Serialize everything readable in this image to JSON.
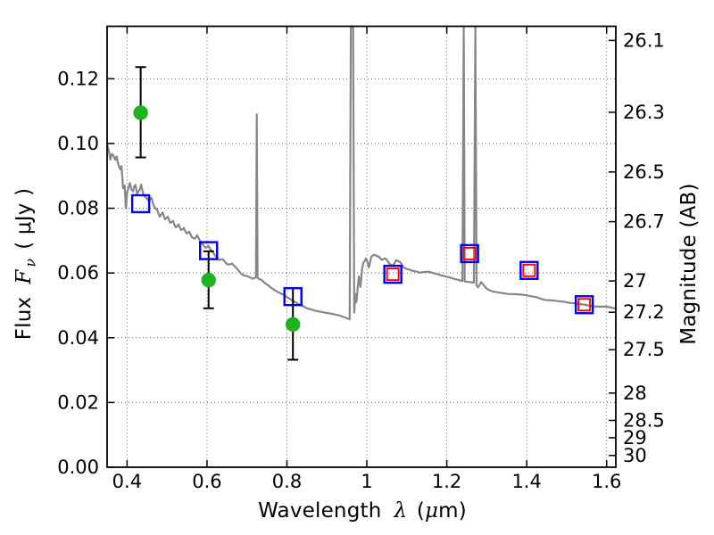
{
  "figure": {
    "xlabel": {
      "prefix": "Wavelength",
      "symbol": "λ",
      "unit_open": "(",
      "unit_mu": "μ",
      "unit_close": "m)"
    },
    "ylabel_left": {
      "prefix": "Flux",
      "symbol": "F",
      "symbol_sub": "ν",
      "unit": "( μJy )"
    },
    "ylabel_right": "Magnitude (AB)"
  },
  "colors": {
    "spectrum": "#868686",
    "green_marker": "#1eb21e",
    "blue_marker": "#0000ee",
    "red_marker": "#ff0000",
    "errorbar": "#000000",
    "frame": "#000000",
    "grid": "#444444",
    "background": "#ffffff"
  },
  "chart_data": {
    "type": "line+scatter",
    "title": "",
    "xlabel": "Wavelength λ (μm)",
    "ylabel_left": "Flux Fν ( μJy )",
    "ylabel_right": "Magnitude (AB)",
    "grid": "dotted lines at major ticks of bottom and left axes",
    "legend": "none",
    "xlim": [
      0.35,
      1.623
    ],
    "ylim_flux": [
      0,
      0.1362
    ],
    "ab_zeropoint_ujy": 23.9,
    "x_ticks": [
      0.4,
      0.6,
      0.8,
      1.0,
      1.2,
      1.4,
      1.6
    ],
    "x_tick_labels": [
      "0.4",
      "0.6",
      "0.8",
      "1",
      "1.2",
      "1.4",
      "1.6"
    ],
    "y_ticks_flux": [
      0.0,
      0.02,
      0.04,
      0.06,
      0.08,
      0.1,
      0.12
    ],
    "y_tick_labels_flux": [
      "0.00",
      "0.02",
      "0.04",
      "0.06",
      "0.08",
      "0.10",
      "0.12"
    ],
    "y_ticks_mag": [
      26.1,
      26.3,
      26.5,
      26.7,
      27,
      27.2,
      27.5,
      28,
      28.5,
      29,
      30
    ],
    "y_tick_labels_mag": [
      "26.1",
      "26.3",
      "26.5",
      "26.7",
      "27",
      "27.2",
      "27.5",
      "28",
      "28.5",
      "29",
      "30"
    ],
    "series": [
      {
        "name": "model-spectrum",
        "type": "line",
        "color": "#868686",
        "points": [
          [
            0.35,
            0.0996
          ],
          [
            0.354,
            0.098
          ],
          [
            0.358,
            0.095
          ],
          [
            0.362,
            0.0968
          ],
          [
            0.366,
            0.0962
          ],
          [
            0.37,
            0.095
          ],
          [
            0.374,
            0.096
          ],
          [
            0.378,
            0.0935
          ],
          [
            0.383,
            0.092
          ],
          [
            0.386,
            0.093
          ],
          [
            0.39,
            0.0862
          ],
          [
            0.394,
            0.087
          ],
          [
            0.397,
            0.08
          ],
          [
            0.4,
            0.0848
          ],
          [
            0.404,
            0.0865
          ],
          [
            0.407,
            0.0878
          ],
          [
            0.411,
            0.0858
          ],
          [
            0.415,
            0.0852
          ],
          [
            0.418,
            0.0868
          ],
          [
            0.421,
            0.0872
          ],
          [
            0.425,
            0.0845
          ],
          [
            0.428,
            0.0852
          ],
          [
            0.432,
            0.0858
          ],
          [
            0.435,
            0.0873
          ],
          [
            0.438,
            0.0856
          ],
          [
            0.441,
            0.0843
          ],
          [
            0.445,
            0.0836
          ],
          [
            0.448,
            0.0832
          ],
          [
            0.452,
            0.0826
          ],
          [
            0.455,
            0.0822
          ],
          [
            0.458,
            0.083
          ],
          [
            0.461,
            0.0832
          ],
          [
            0.465,
            0.0815
          ],
          [
            0.468,
            0.0805
          ],
          [
            0.472,
            0.0798
          ],
          [
            0.475,
            0.0796
          ],
          [
            0.479,
            0.0782
          ],
          [
            0.482,
            0.0774
          ],
          [
            0.486,
            0.0782
          ],
          [
            0.489,
            0.0787
          ],
          [
            0.492,
            0.0776
          ],
          [
            0.495,
            0.0766
          ],
          [
            0.499,
            0.077
          ],
          [
            0.502,
            0.0774
          ],
          [
            0.505,
            0.0764
          ],
          [
            0.508,
            0.0755
          ],
          [
            0.512,
            0.0758
          ],
          [
            0.515,
            0.0761
          ],
          [
            0.518,
            0.075
          ],
          [
            0.522,
            0.0741
          ],
          [
            0.525,
            0.0744
          ],
          [
            0.529,
            0.075
          ],
          [
            0.532,
            0.0741
          ],
          [
            0.535,
            0.0733
          ],
          [
            0.539,
            0.0735
          ],
          [
            0.542,
            0.0739
          ],
          [
            0.545,
            0.0731
          ],
          [
            0.549,
            0.0722
          ],
          [
            0.552,
            0.0724
          ],
          [
            0.555,
            0.0728
          ],
          [
            0.559,
            0.0719
          ],
          [
            0.562,
            0.0711
          ],
          [
            0.566,
            0.0708
          ],
          [
            0.569,
            0.0706
          ],
          [
            0.572,
            0.071
          ],
          [
            0.575,
            0.0717
          ],
          [
            0.579,
            0.0708
          ],
          [
            0.582,
            0.07
          ],
          [
            0.586,
            0.0694
          ],
          [
            0.589,
            0.0689
          ],
          [
            0.593,
            0.0683
          ],
          [
            0.596,
            0.0678
          ],
          [
            0.6,
            0.068
          ],
          [
            0.604,
            0.0684
          ],
          [
            0.609,
            0.0672
          ],
          [
            0.613,
            0.0667
          ],
          [
            0.618,
            0.0658
          ],
          [
            0.622,
            0.0651
          ],
          [
            0.627,
            0.0645
          ],
          [
            0.631,
            0.064
          ],
          [
            0.636,
            0.0642
          ],
          [
            0.64,
            0.0642
          ],
          [
            0.646,
            0.0633
          ],
          [
            0.651,
            0.0626
          ],
          [
            0.657,
            0.0627
          ],
          [
            0.663,
            0.0629
          ],
          [
            0.669,
            0.0621
          ],
          [
            0.674,
            0.0615
          ],
          [
            0.681,
            0.0604
          ],
          [
            0.687,
            0.0596
          ],
          [
            0.694,
            0.0592
          ],
          [
            0.701,
            0.059
          ],
          [
            0.708,
            0.0586
          ],
          [
            0.714,
            0.0582
          ],
          [
            0.719,
            0.0585
          ],
          [
            0.7225,
            0.0586
          ],
          [
            0.7245,
            0.109
          ],
          [
            0.7265,
            0.0585
          ],
          [
            0.731,
            0.0581
          ],
          [
            0.736,
            0.0579
          ],
          [
            0.744,
            0.057
          ],
          [
            0.752,
            0.0563
          ],
          [
            0.761,
            0.0554
          ],
          [
            0.77,
            0.0546
          ],
          [
            0.779,
            0.054
          ],
          [
            0.788,
            0.0535
          ],
          [
            0.797,
            0.0528
          ],
          [
            0.806,
            0.0521
          ],
          [
            0.815,
            0.0514
          ],
          [
            0.824,
            0.0508
          ],
          [
            0.833,
            0.0501
          ],
          [
            0.841,
            0.0497
          ],
          [
            0.852,
            0.049
          ],
          [
            0.864,
            0.0486
          ],
          [
            0.875,
            0.0482
          ],
          [
            0.886,
            0.048
          ],
          [
            0.897,
            0.0477
          ],
          [
            0.908,
            0.0475
          ],
          [
            0.919,
            0.0472
          ],
          [
            0.931,
            0.0469
          ],
          [
            0.942,
            0.0464
          ],
          [
            0.951,
            0.046
          ],
          [
            0.957,
            0.0457
          ],
          [
            0.96,
            0.1362
          ],
          [
            0.9655,
            0.1362
          ],
          [
            0.9685,
            0.0478
          ],
          [
            0.971,
            0.0535
          ],
          [
            0.974,
            0.051
          ],
          [
            0.977,
            0.0552
          ],
          [
            0.98,
            0.059
          ],
          [
            0.984,
            0.0557
          ],
          [
            0.988,
            0.0612
          ],
          [
            0.991,
            0.0631
          ],
          [
            0.995,
            0.0638
          ],
          [
            0.998,
            0.0645
          ],
          [
            1.002,
            0.0632
          ],
          [
            1.005,
            0.0617
          ],
          [
            1.008,
            0.0632
          ],
          [
            1.011,
            0.065
          ],
          [
            1.016,
            0.0655
          ],
          [
            1.02,
            0.0656
          ],
          [
            1.025,
            0.0652
          ],
          [
            1.029,
            0.0651
          ],
          [
            1.034,
            0.0645
          ],
          [
            1.038,
            0.064
          ],
          [
            1.043,
            0.0644
          ],
          [
            1.047,
            0.0645
          ],
          [
            1.052,
            0.0637
          ],
          [
            1.056,
            0.0629
          ],
          [
            1.061,
            0.0625
          ],
          [
            1.065,
            0.0622
          ],
          [
            1.07,
            0.0632
          ],
          [
            1.074,
            0.064
          ],
          [
            1.079,
            0.0636
          ],
          [
            1.083,
            0.0634
          ],
          [
            1.088,
            0.0626
          ],
          [
            1.092,
            0.0617
          ],
          [
            1.099,
            0.0613
          ],
          [
            1.105,
            0.0611
          ],
          [
            1.112,
            0.0608
          ],
          [
            1.118,
            0.0606
          ],
          [
            1.125,
            0.0604
          ],
          [
            1.132,
            0.0601
          ],
          [
            1.143,
            0.0603
          ],
          [
            1.154,
            0.0604
          ],
          [
            1.166,
            0.06
          ],
          [
            1.177,
            0.0596
          ],
          [
            1.188,
            0.0592
          ],
          [
            1.199,
            0.0589
          ],
          [
            1.21,
            0.0585
          ],
          [
            1.221,
            0.0581
          ],
          [
            1.23,
            0.0578
          ],
          [
            1.239,
            0.0575
          ],
          [
            1.2424,
            0.1362
          ],
          [
            1.245,
            0.0574
          ],
          [
            1.251,
            0.0573
          ],
          [
            1.257,
            0.0572
          ],
          [
            1.263,
            0.0571
          ],
          [
            1.268,
            0.057
          ],
          [
            1.2715,
            0.1362
          ],
          [
            1.2745,
            0.0562
          ],
          [
            1.278,
            0.0556
          ],
          [
            1.283,
            0.0565
          ],
          [
            1.286,
            0.0572
          ],
          [
            1.291,
            0.0565
          ],
          [
            1.296,
            0.0557
          ],
          [
            1.3,
            0.0551
          ],
          [
            1.308,
            0.0546
          ],
          [
            1.315,
            0.0543
          ],
          [
            1.324,
            0.0541
          ],
          [
            1.333,
            0.0539
          ],
          [
            1.344,
            0.0537
          ],
          [
            1.355,
            0.0535
          ],
          [
            1.366,
            0.0535
          ],
          [
            1.378,
            0.0534
          ],
          [
            1.389,
            0.0533
          ],
          [
            1.4,
            0.0531
          ],
          [
            1.411,
            0.0528
          ],
          [
            1.422,
            0.0526
          ],
          [
            1.434,
            0.0521
          ],
          [
            1.445,
            0.0517
          ],
          [
            1.456,
            0.0516
          ],
          [
            1.467,
            0.0515
          ],
          [
            1.478,
            0.0513
          ],
          [
            1.489,
            0.0512
          ],
          [
            1.501,
            0.0509
          ],
          [
            1.512,
            0.0507
          ],
          [
            1.523,
            0.0506
          ],
          [
            1.534,
            0.0504
          ],
          [
            1.545,
            0.0502
          ],
          [
            1.556,
            0.0499
          ],
          [
            1.567,
            0.0497
          ],
          [
            1.579,
            0.0496
          ],
          [
            1.59,
            0.0496
          ],
          [
            1.601,
            0.0496
          ],
          [
            1.612,
            0.0493
          ],
          [
            1.623,
            0.049
          ]
        ]
      },
      {
        "name": "observed-photometry-green-circles",
        "type": "scatter",
        "marker": "filled-circle-with-errorbar",
        "color": "#1eb21e",
        "points": [
          {
            "x": 0.434,
            "y": 0.1095,
            "err_lo": 0.0957,
            "err_hi": 0.1236
          },
          {
            "x": 0.604,
            "y": 0.0578,
            "err_lo": 0.0491,
            "err_hi": 0.0667
          },
          {
            "x": 0.815,
            "y": 0.0441,
            "err_lo": 0.0332,
            "err_hi": 0.0553
          }
        ]
      },
      {
        "name": "model-photometry-squares",
        "type": "scatter",
        "marker": "open-square (blue), inner open square (red) where flagged",
        "color": "#0000ee",
        "inner_color": "#ff0000",
        "points": [
          {
            "x": 0.434,
            "y": 0.0814,
            "red_inner": false
          },
          {
            "x": 0.604,
            "y": 0.0669,
            "red_inner": false
          },
          {
            "x": 0.815,
            "y": 0.0527,
            "red_inner": false
          },
          {
            "x": 1.065,
            "y": 0.0596,
            "red_inner": true
          },
          {
            "x": 1.257,
            "y": 0.066,
            "red_inner": true
          },
          {
            "x": 1.406,
            "y": 0.0608,
            "red_inner": true
          },
          {
            "x": 1.544,
            "y": 0.0502,
            "red_inner": true
          }
        ]
      }
    ]
  }
}
